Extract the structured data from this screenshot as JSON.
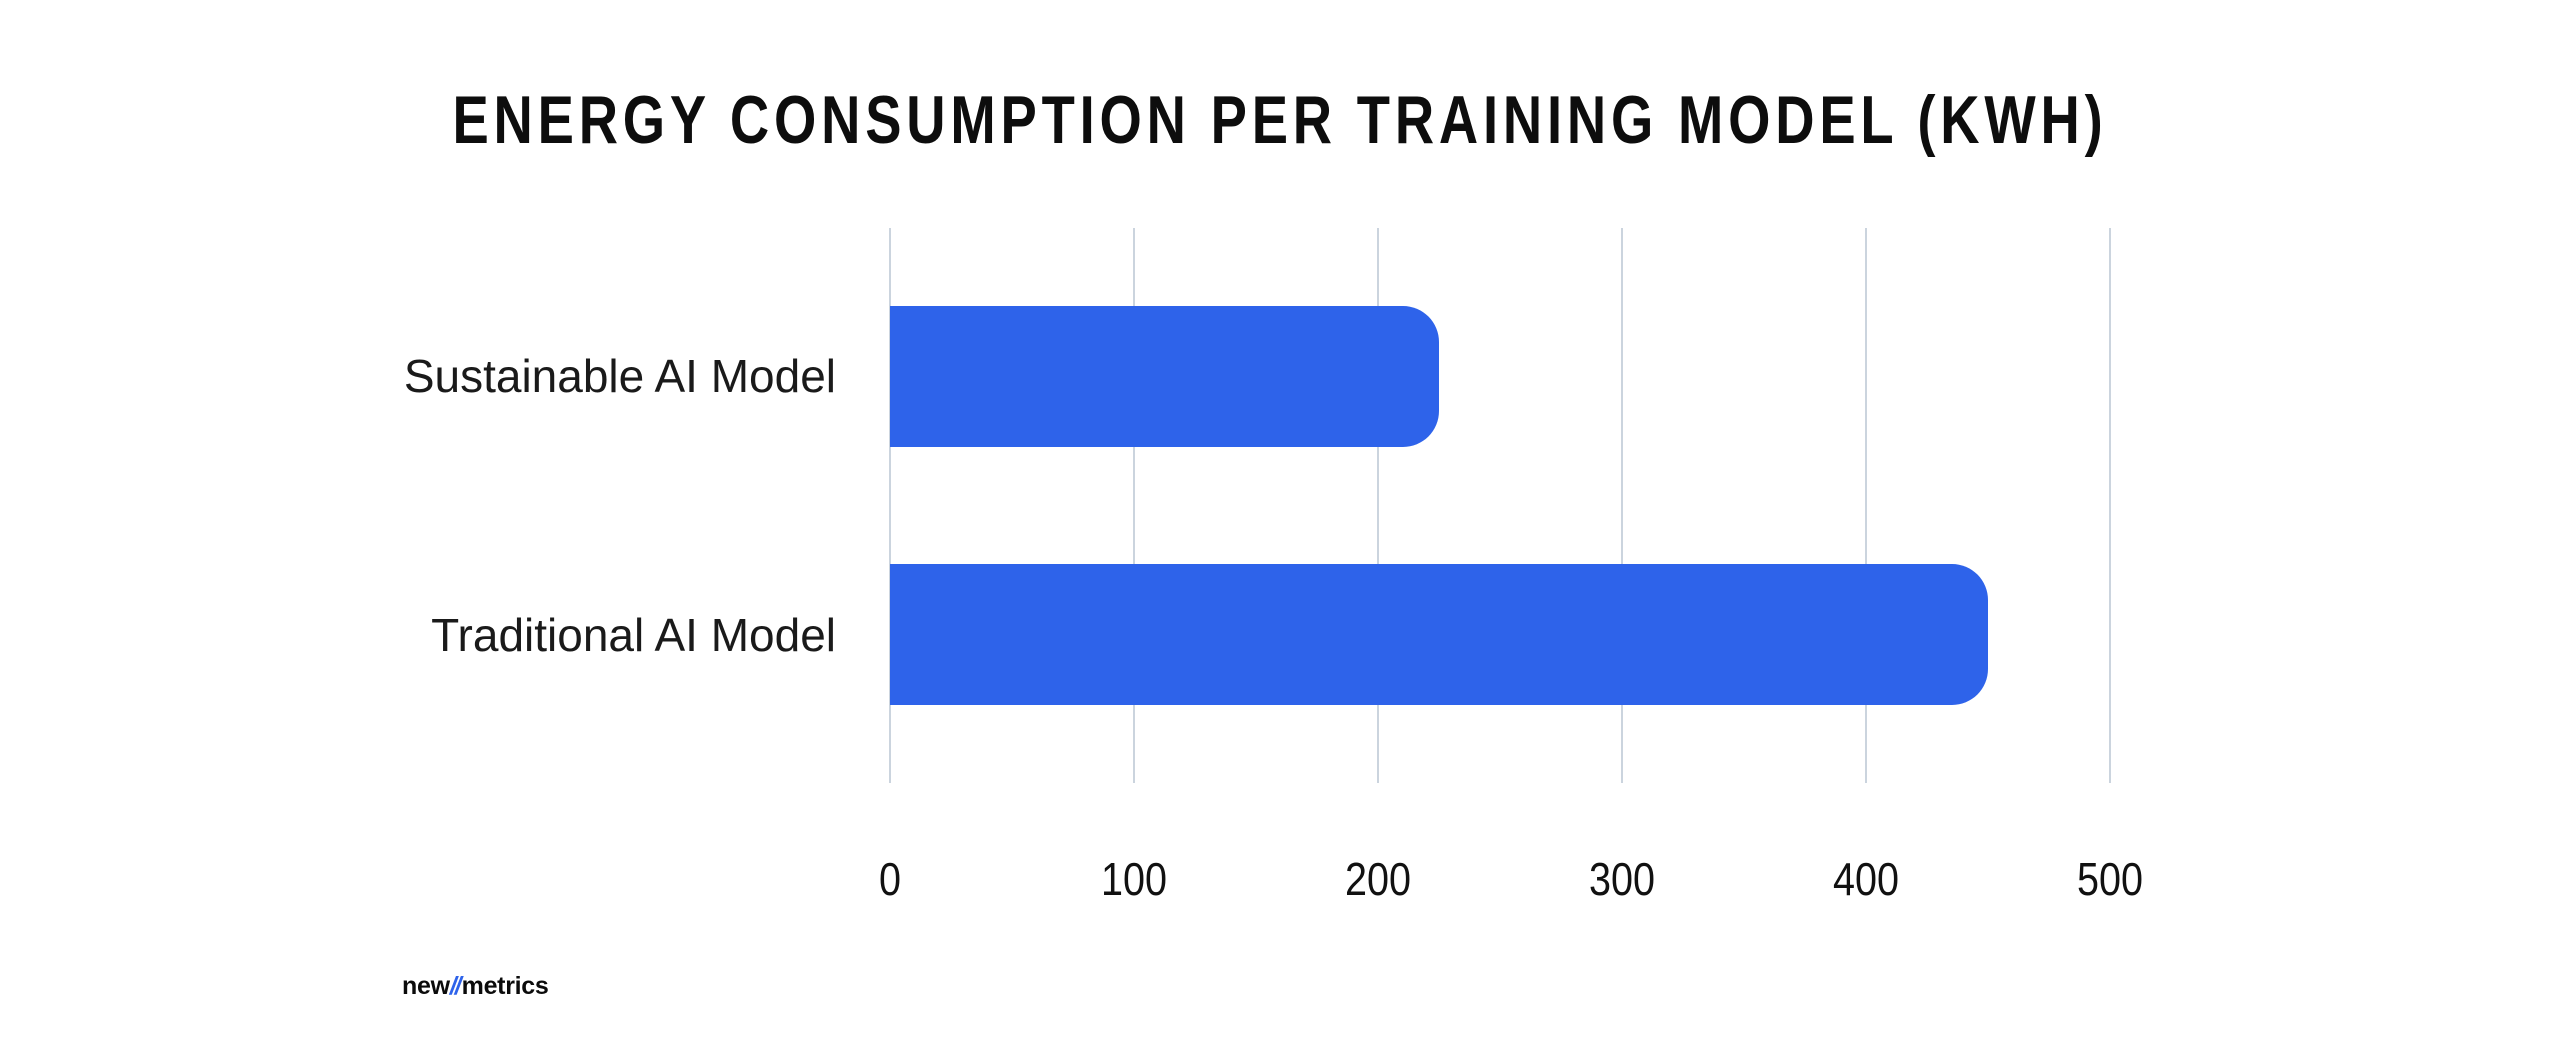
{
  "header": {
    "title": "ENERGY CONSUMPTION PER TRAINING MODEL (KWH)"
  },
  "chart_data": {
    "type": "bar",
    "orientation": "horizontal",
    "title": "ENERGY CONSUMPTION PER TRAINING MODEL (KWH)",
    "categories": [
      "Sustainable AI Model",
      "Traditional AI Model"
    ],
    "values": [
      225,
      450
    ],
    "xlabel": "",
    "ylabel": "",
    "xlim": [
      0,
      500
    ],
    "xticks": [
      "0",
      "100",
      "200",
      "300",
      "400",
      "500"
    ],
    "grid": "vertical-only",
    "legend": "none",
    "bar_color": "#2e63ea",
    "gridline_color": "#cbd4de",
    "text_color": "#111111"
  },
  "footer": {
    "logo": {
      "part1": "new",
      "slashes": "//",
      "part2": "metrics",
      "slash_color": "#2e63ea",
      "text_color": "#0b0b0b"
    }
  }
}
